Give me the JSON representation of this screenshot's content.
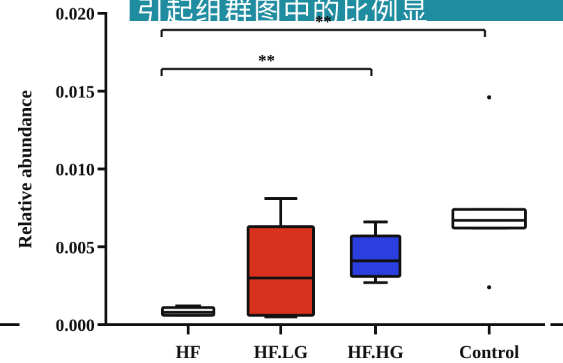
{
  "banner": {
    "text": "引起组群图中的比例显",
    "color": "#1f8ca0"
  },
  "chart_data": {
    "type": "box",
    "ylabel": "Relative abundance",
    "ylim": [
      0,
      0.02
    ],
    "yticks": [
      "0.000",
      "0.005",
      "0.010",
      "0.015",
      "0.020"
    ],
    "categories": [
      "HF",
      "HF.LG",
      "HF.HG",
      "Control"
    ],
    "boxes": [
      {
        "name": "HF",
        "whisker_low": 0.0006,
        "q1": 0.0006,
        "median": 0.0008,
        "q3": 0.0011,
        "whisker_high": 0.0012,
        "fill": "#ffffff",
        "outliers": []
      },
      {
        "name": "HF.LG",
        "whisker_low": 0.0005,
        "q1": 0.0006,
        "median": 0.003,
        "q3": 0.0063,
        "whisker_high": 0.0081,
        "fill": "#d8321f",
        "outliers": []
      },
      {
        "name": "HF.HG",
        "whisker_low": 0.0027,
        "q1": 0.0031,
        "median": 0.0041,
        "q3": 0.0057,
        "whisker_high": 0.0066,
        "fill": "#2b3fe0",
        "outliers": []
      },
      {
        "name": "Control",
        "whisker_low": 0.0062,
        "q1": 0.0062,
        "median": 0.0067,
        "q3": 0.0074,
        "whisker_high": 0.0074,
        "fill": "#ffffff",
        "outliers": [
          0.0146,
          0.0024
        ]
      }
    ],
    "significance": [
      {
        "from": "HF",
        "to": "Control",
        "label": "**"
      },
      {
        "from": "HF",
        "to": "HF.HG",
        "label": "**"
      }
    ]
  }
}
